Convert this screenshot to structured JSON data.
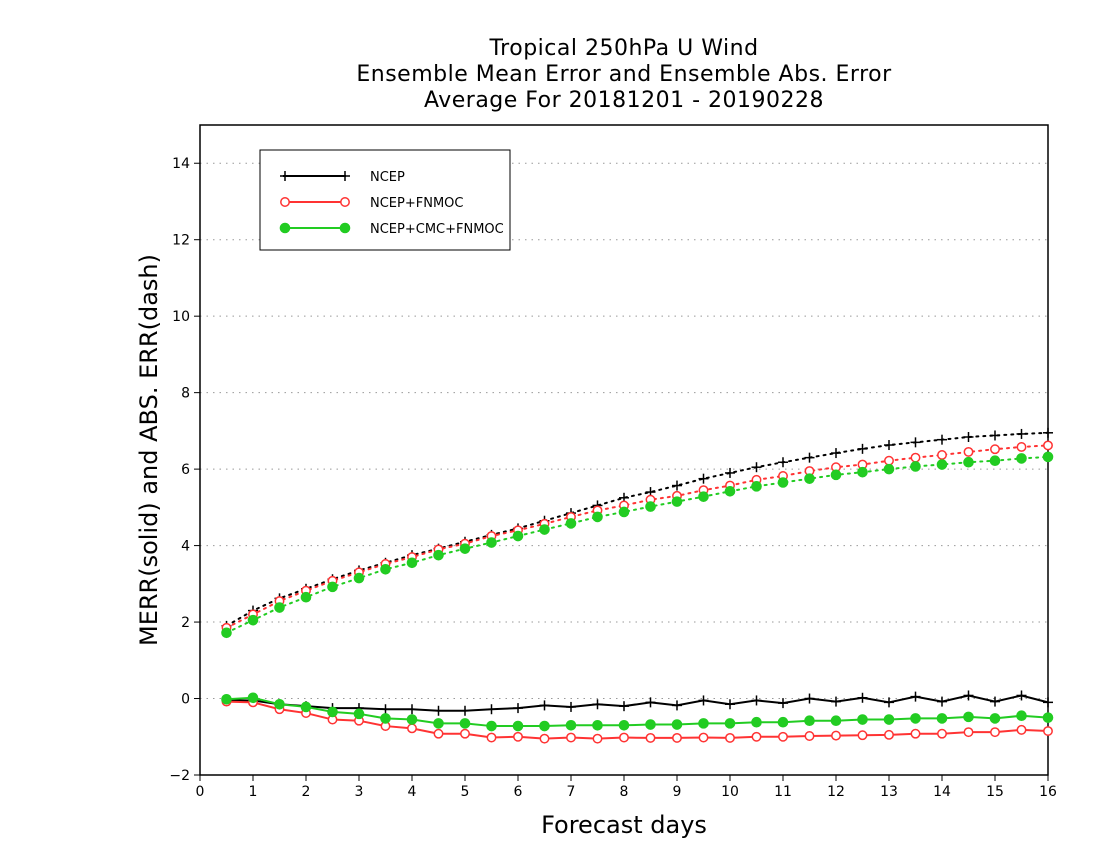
{
  "chart_data": {
    "type": "line",
    "title": [
      "Tropical 250hPa U Wind",
      "Ensemble Mean Error and Ensemble Abs. Error",
      "Average For 20181201 - 20190228"
    ],
    "xlabel": "Forecast days",
    "ylabel": "MERR(solid) and ABS. ERR(dash)",
    "xlim": [
      0,
      16
    ],
    "ylim": [
      -2,
      15
    ],
    "xticks": [
      0,
      1,
      2,
      3,
      4,
      5,
      6,
      7,
      8,
      9,
      10,
      11,
      12,
      13,
      14,
      15,
      16
    ],
    "yticks": [
      -2,
      0,
      2,
      4,
      6,
      8,
      10,
      12,
      14
    ],
    "ytick_labels": [
      "−2",
      "0",
      "2",
      "4",
      "6",
      "8",
      "10",
      "12",
      "14"
    ],
    "grid": "horizontal dotted",
    "legend_position": "top-left",
    "x": [
      0.5,
      1,
      1.5,
      2,
      2.5,
      3,
      3.5,
      4,
      4.5,
      5,
      5.5,
      6,
      6.5,
      7,
      7.5,
      8,
      8.5,
      9,
      9.5,
      10,
      10.5,
      11,
      11.5,
      12,
      12.5,
      13,
      13.5,
      14,
      14.5,
      15,
      15.5,
      16
    ],
    "series": [
      {
        "name": "NCEP",
        "color": "#000000",
        "marker": "plus",
        "mean_error": [
          -0.05,
          -0.05,
          -0.15,
          -0.2,
          -0.25,
          -0.25,
          -0.28,
          -0.28,
          -0.32,
          -0.32,
          -0.28,
          -0.25,
          -0.18,
          -0.22,
          -0.15,
          -0.2,
          -0.1,
          -0.18,
          -0.05,
          -0.15,
          -0.05,
          -0.12,
          0.0,
          -0.08,
          0.02,
          -0.1,
          0.05,
          -0.08,
          0.08,
          -0.08,
          0.08,
          -0.1
        ],
        "abs_error": [
          1.9,
          2.3,
          2.62,
          2.87,
          3.12,
          3.35,
          3.55,
          3.75,
          3.92,
          4.1,
          4.28,
          4.45,
          4.65,
          4.85,
          5.05,
          5.25,
          5.4,
          5.57,
          5.75,
          5.9,
          6.05,
          6.18,
          6.3,
          6.42,
          6.53,
          6.63,
          6.7,
          6.77,
          6.84,
          6.88,
          6.92,
          6.95
        ]
      },
      {
        "name": "NCEP+FNMOC",
        "color": "#ff3333",
        "marker": "open-circle",
        "mean_error": [
          -0.08,
          -0.1,
          -0.28,
          -0.38,
          -0.55,
          -0.58,
          -0.72,
          -0.78,
          -0.92,
          -0.92,
          -1.02,
          -1.0,
          -1.05,
          -1.02,
          -1.05,
          -1.02,
          -1.03,
          -1.03,
          -1.02,
          -1.03,
          -1.0,
          -1.0,
          -0.98,
          -0.97,
          -0.96,
          -0.95,
          -0.92,
          -0.92,
          -0.88,
          -0.88,
          -0.82,
          -0.85
        ],
        "abs_error": [
          1.85,
          2.2,
          2.55,
          2.82,
          3.08,
          3.3,
          3.52,
          3.7,
          3.9,
          4.05,
          4.25,
          4.4,
          4.57,
          4.75,
          4.92,
          5.05,
          5.2,
          5.3,
          5.45,
          5.57,
          5.72,
          5.82,
          5.95,
          6.05,
          6.12,
          6.22,
          6.3,
          6.37,
          6.45,
          6.52,
          6.58,
          6.62
        ]
      },
      {
        "name": "NCEP+CMC+FNMOC",
        "color": "#22cc22",
        "marker": "filled-circle",
        "mean_error": [
          -0.02,
          0.02,
          -0.15,
          -0.22,
          -0.35,
          -0.4,
          -0.52,
          -0.55,
          -0.65,
          -0.65,
          -0.72,
          -0.72,
          -0.72,
          -0.7,
          -0.7,
          -0.7,
          -0.68,
          -0.68,
          -0.65,
          -0.65,
          -0.62,
          -0.62,
          -0.58,
          -0.58,
          -0.55,
          -0.55,
          -0.52,
          -0.52,
          -0.48,
          -0.52,
          -0.45,
          -0.5
        ],
        "abs_error": [
          1.72,
          2.05,
          2.38,
          2.65,
          2.92,
          3.15,
          3.38,
          3.55,
          3.75,
          3.92,
          4.08,
          4.25,
          4.42,
          4.58,
          4.75,
          4.88,
          5.02,
          5.15,
          5.28,
          5.42,
          5.55,
          5.65,
          5.75,
          5.85,
          5.92,
          6.0,
          6.07,
          6.12,
          6.18,
          6.22,
          6.28,
          6.32
        ]
      }
    ]
  }
}
